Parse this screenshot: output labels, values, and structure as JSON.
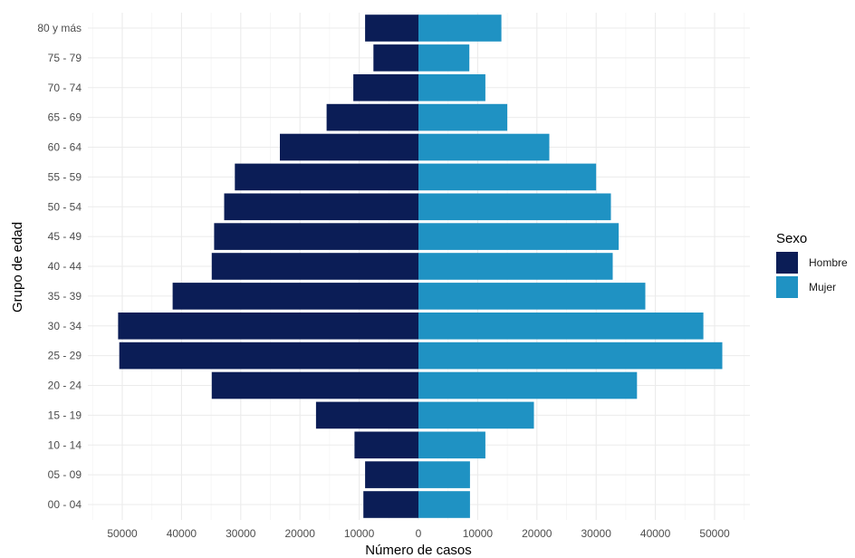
{
  "chart_data": {
    "type": "bar",
    "orientation": "horizontal",
    "layout": "population-pyramid",
    "title": "",
    "xlabel": "Número de casos",
    "ylabel": "Grupo de edad",
    "xlim": [
      -55000,
      55000
    ],
    "xticks": [
      -50000,
      -40000,
      -30000,
      -20000,
      -10000,
      0,
      10000,
      20000,
      30000,
      40000,
      50000
    ],
    "xtick_labels": [
      "50000",
      "40000",
      "30000",
      "20000",
      "10000",
      "0",
      "10000",
      "20000",
      "30000",
      "40000",
      "50000"
    ],
    "grid": true,
    "legend": {
      "title": "Sexo",
      "position": "right"
    },
    "categories": [
      "00 - 04",
      "05 - 09",
      "10 - 14",
      "15 - 19",
      "20 - 24",
      "25 - 29",
      "30 - 34",
      "35 - 39",
      "40 - 44",
      "45 - 49",
      "50 - 54",
      "55 - 59",
      "60 - 64",
      "65 - 69",
      "70 - 74",
      "75 - 79",
      "80 y más"
    ],
    "series": [
      {
        "name": "Hombre",
        "color": "#0b1d56",
        "side": "left",
        "values": [
          9300,
          9000,
          10800,
          17300,
          34900,
          50500,
          50700,
          41500,
          34900,
          34500,
          32800,
          31000,
          23400,
          15500,
          11000,
          7600,
          9000
        ]
      },
      {
        "name": "Mujer",
        "color": "#1f92c3",
        "side": "right",
        "values": [
          8700,
          8700,
          11300,
          19500,
          36900,
          51300,
          48100,
          38300,
          32800,
          33800,
          32500,
          30000,
          22100,
          15000,
          11300,
          8600,
          14000
        ]
      }
    ]
  }
}
